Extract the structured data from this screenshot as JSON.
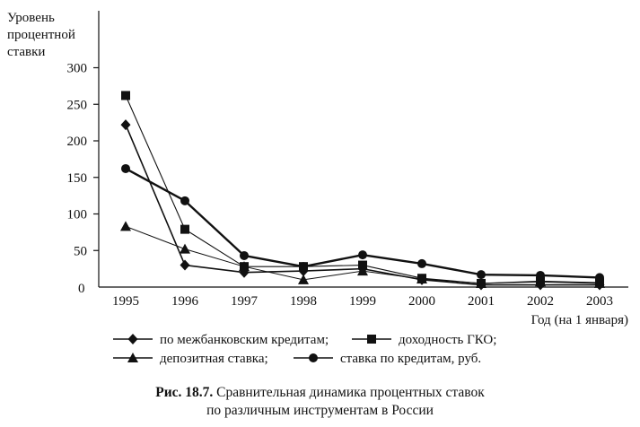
{
  "chart_data": {
    "type": "line",
    "ylabel_lines": [
      "Уровень",
      "процентной",
      "ставки"
    ],
    "xlabel": "Год (на 1 января)",
    "origin_label": "0",
    "x": [
      "1995",
      "1996",
      "1997",
      "1998",
      "1999",
      "2000",
      "2001",
      "2002",
      "2003"
    ],
    "yticks": [
      "50",
      "100",
      "150",
      "200",
      "250",
      "300"
    ],
    "ylim": [
      0,
      300
    ],
    "grid": false,
    "legend_position": "bottom",
    "series": [
      {
        "name": "по межбанковским кредитам;",
        "marker": "diamond",
        "values": [
          222,
          30,
          20,
          22,
          25,
          10,
          3,
          3,
          3
        ]
      },
      {
        "name": "доходность ГКО;",
        "marker": "square",
        "values": [
          262,
          79,
          28,
          28,
          30,
          12,
          5,
          8,
          6
        ]
      },
      {
        "name": "депозитная ставка;",
        "marker": "triangle",
        "values": [
          83,
          52,
          28,
          10,
          22,
          11,
          5,
          7,
          5
        ]
      },
      {
        "name": "ставка по кредитам, руб.",
        "marker": "circle",
        "values": [
          162,
          118,
          43,
          28,
          44,
          32,
          17,
          16,
          13
        ]
      }
    ]
  },
  "caption": {
    "label": "Рис. 18.7.",
    "line1": " Сравнительная динамика процентных ставок",
    "line2": "по различным инструментам в России"
  }
}
